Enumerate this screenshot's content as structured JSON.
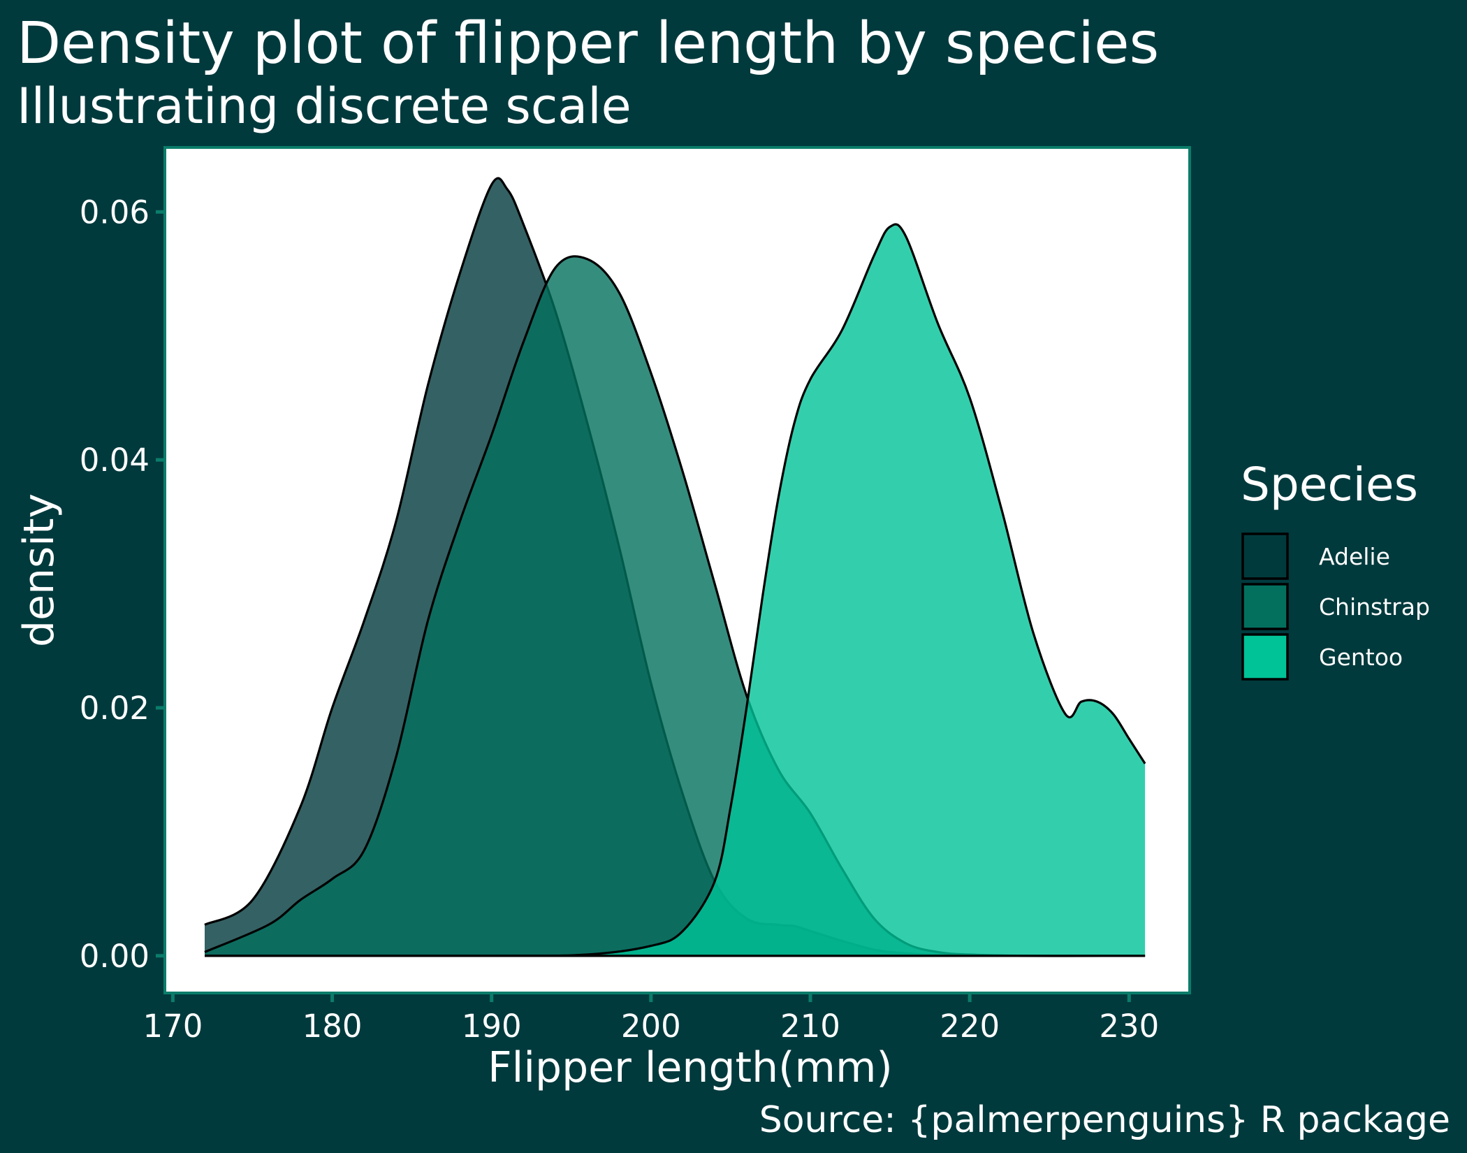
{
  "colors": {
    "background": "#013a3d",
    "panel": "#ffffff",
    "panel_border": "#0b7d6a",
    "axis_ticks": "#0b7d6a",
    "text": "#ffffff"
  },
  "chart_data": {
    "type": "area",
    "subtype": "density",
    "title": "Density plot of flipper length by species",
    "subtitle": "Illustrating discrete scale",
    "xlabel": "Flipper length(mm)",
    "ylabel": "density",
    "caption": "Source: {palmerpenguins} R package",
    "xlim": [
      169.5,
      233.8
    ],
    "ylim": [
      -0.003,
      0.0652
    ],
    "x_ticks": [
      170,
      180,
      190,
      200,
      210,
      220,
      230
    ],
    "x_tick_labels": [
      "170",
      "180",
      "190",
      "200",
      "210",
      "220",
      "230"
    ],
    "y_ticks": [
      0.0,
      0.02,
      0.04,
      0.06
    ],
    "y_tick_labels": [
      "0.00",
      "0.02",
      "0.04",
      "0.06"
    ],
    "grid": false,
    "legend": {
      "title": "Species",
      "position": "right"
    },
    "series": [
      {
        "name": "Adelie",
        "color": "#013a3d",
        "opacity": 0.8,
        "points": [
          [
            172,
            0.0025
          ],
          [
            175,
            0.0045
          ],
          [
            178,
            0.012
          ],
          [
            180,
            0.02
          ],
          [
            182,
            0.027
          ],
          [
            184,
            0.035
          ],
          [
            186,
            0.046
          ],
          [
            188,
            0.055
          ],
          [
            190,
            0.0622
          ],
          [
            191,
            0.0618
          ],
          [
            192,
            0.059
          ],
          [
            194,
            0.052
          ],
          [
            196,
            0.043
          ],
          [
            198,
            0.033
          ],
          [
            200,
            0.022
          ],
          [
            202,
            0.013
          ],
          [
            204,
            0.006
          ],
          [
            206,
            0.003
          ],
          [
            208,
            0.0025
          ],
          [
            209,
            0.0024
          ],
          [
            210,
            0.002
          ],
          [
            212,
            0.0012
          ],
          [
            214,
            0.0005
          ],
          [
            216,
            0.0002
          ],
          [
            220,
            0.0
          ],
          [
            231,
            0.0
          ]
        ]
      },
      {
        "name": "Chinstrap",
        "color": "#03705e",
        "opacity": 0.8,
        "points": [
          [
            172,
            0.0003
          ],
          [
            176,
            0.0025
          ],
          [
            178,
            0.0045
          ],
          [
            180,
            0.0062
          ],
          [
            182,
            0.0085
          ],
          [
            184,
            0.016
          ],
          [
            186,
            0.027
          ],
          [
            188,
            0.035
          ],
          [
            190,
            0.042
          ],
          [
            192,
            0.0495
          ],
          [
            194,
            0.0555
          ],
          [
            196,
            0.0562
          ],
          [
            198,
            0.0535
          ],
          [
            200,
            0.047
          ],
          [
            202,
            0.039
          ],
          [
            204,
            0.03
          ],
          [
            206,
            0.021
          ],
          [
            208,
            0.015
          ],
          [
            210,
            0.0115
          ],
          [
            212,
            0.007
          ],
          [
            214,
            0.003
          ],
          [
            216,
            0.001
          ],
          [
            218,
            0.0003
          ],
          [
            220,
            0.0001
          ],
          [
            224,
            0.0
          ],
          [
            231,
            0.0
          ]
        ]
      },
      {
        "name": "Gentoo",
        "color": "#00c398",
        "opacity": 0.8,
        "points": [
          [
            172,
            0.0
          ],
          [
            190,
            0.0
          ],
          [
            196,
            0.0001
          ],
          [
            200,
            0.0008
          ],
          [
            202,
            0.002
          ],
          [
            204,
            0.006
          ],
          [
            205,
            0.012
          ],
          [
            206,
            0.02
          ],
          [
            207,
            0.029
          ],
          [
            208,
            0.037
          ],
          [
            209,
            0.043
          ],
          [
            210,
            0.0465
          ],
          [
            212,
            0.0505
          ],
          [
            214,
            0.0565
          ],
          [
            215,
            0.0588
          ],
          [
            216,
            0.058
          ],
          [
            218,
            0.051
          ],
          [
            220,
            0.045
          ],
          [
            222,
            0.036
          ],
          [
            224,
            0.026
          ],
          [
            226,
            0.0195
          ],
          [
            227,
            0.0205
          ],
          [
            228,
            0.0205
          ],
          [
            229,
            0.0195
          ],
          [
            230,
            0.0175
          ],
          [
            231,
            0.0155
          ]
        ]
      }
    ]
  }
}
